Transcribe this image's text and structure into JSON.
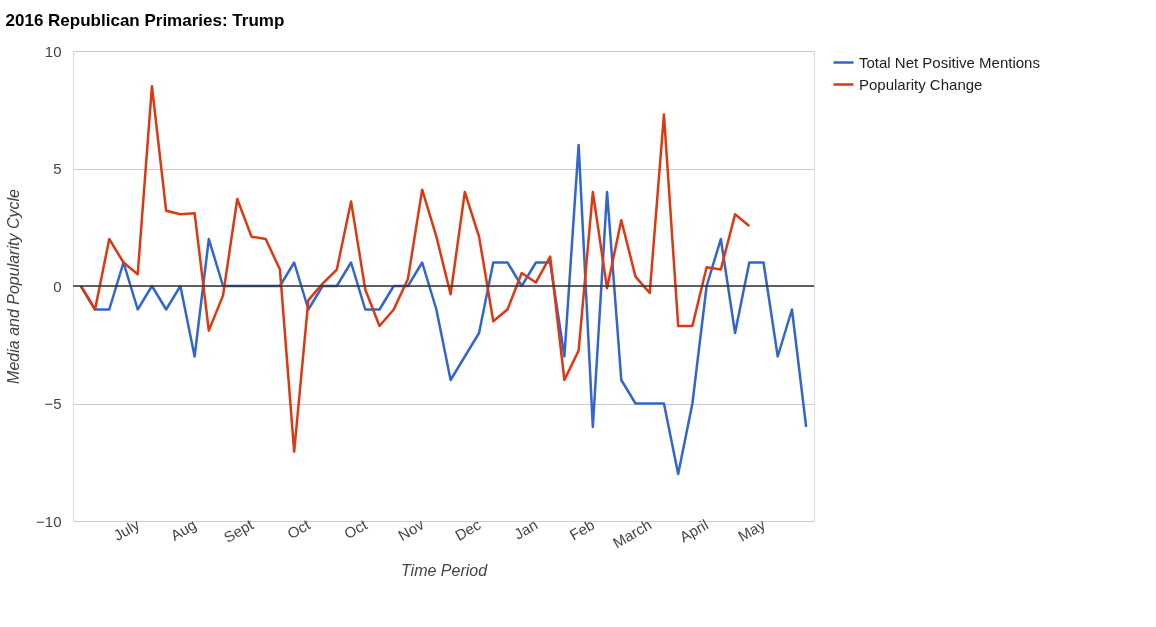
{
  "chart_data": {
    "type": "line",
    "title": "2016 Republican Primaries: Trump",
    "xlabel": "Time Period",
    "ylabel": "Media and Popularity Cycle",
    "categories": [
      null,
      null,
      null,
      null,
      "July",
      null,
      null,
      null,
      "Aug",
      null,
      null,
      null,
      "Sept",
      null,
      null,
      null,
      "Oct",
      null,
      null,
      null,
      "Oct",
      null,
      null,
      null,
      "Nov",
      null,
      null,
      null,
      "Dec",
      null,
      null,
      null,
      "Jan",
      null,
      null,
      null,
      "Feb",
      null,
      null,
      null,
      "March",
      null,
      null,
      null,
      "April",
      null,
      null,
      null,
      "May",
      null,
      null,
      null
    ],
    "series": [
      {
        "name": "Total Net Positive Mentions",
        "color": "#3366cc",
        "values": [
          0,
          -1,
          -1,
          1,
          -1,
          0,
          -1,
          0,
          -3,
          2,
          0,
          0,
          0,
          0,
          0,
          1,
          -1,
          0,
          0,
          1,
          -1,
          -1,
          0,
          0,
          1,
          -1,
          -4,
          -3,
          -2,
          1,
          1,
          0,
          1,
          1,
          -3,
          6,
          -6,
          4,
          -4,
          -5,
          -5,
          -5,
          -8,
          -5,
          0,
          2,
          -2,
          1,
          1,
          -3,
          -1,
          -6
        ]
      },
      {
        "name": "Popularity Change",
        "color": "#dc3912",
        "values": [
          0,
          -1,
          2.0,
          1.0,
          0.5,
          8.5,
          3.2,
          3.05,
          3.1,
          -1.9,
          -0.4,
          3.7,
          2.1,
          2.0,
          0.7,
          -7.05,
          -0.6,
          0.1,
          0.7,
          3.6,
          -0.15,
          -1.7,
          -1.0,
          0.3,
          4.1,
          2.1,
          -0.35,
          4.0,
          2.1,
          -1.5,
          -1.0,
          0.55,
          0.15,
          1.25,
          -4.0,
          -2.75,
          4.0,
          -0.1,
          2.8,
          0.4,
          -0.3,
          7.3,
          -1.7,
          -1.7,
          0.8,
          0.7,
          3.05,
          2.55,
          null,
          null,
          null,
          null
        ]
      }
    ],
    "ylim": [
      -10,
      10
    ],
    "yticks": [
      -10,
      -5,
      0,
      5,
      10
    ],
    "grid": "y",
    "legend": "top right",
    "ref_lines": [
      {
        "axis": "y",
        "value": 0,
        "color": "#333333"
      }
    ]
  }
}
